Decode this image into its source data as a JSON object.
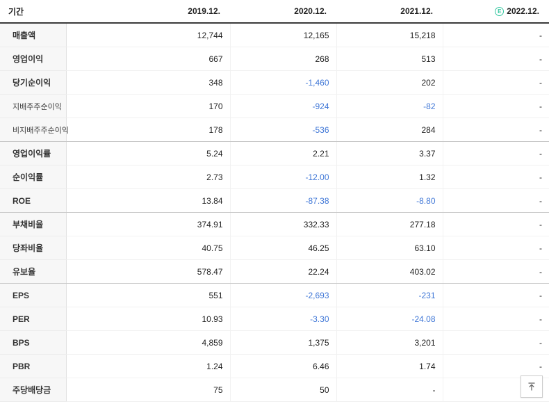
{
  "colors": {
    "negative_value": "#4178d7",
    "estimate_badge": "#35c7a0",
    "header_rule": "#3a3a3a",
    "label_column_bg": "#f7f7f7"
  },
  "table": {
    "period_label": "기간",
    "columns": [
      "2019.12.",
      "2020.12.",
      "2021.12.",
      "2022.12."
    ],
    "estimate_badge": "E",
    "rows": [
      {
        "label": "매출액",
        "sub": false,
        "sep_after": false,
        "values": [
          "12,744",
          "12,165",
          "15,218",
          "-"
        ]
      },
      {
        "label": "영업이익",
        "sub": false,
        "sep_after": false,
        "values": [
          "667",
          "268",
          "513",
          "-"
        ]
      },
      {
        "label": "당기순이익",
        "sub": false,
        "sep_after": false,
        "values": [
          "348",
          "-1,460",
          "202",
          "-"
        ]
      },
      {
        "label": "지배주주순이익",
        "sub": true,
        "sep_after": false,
        "values": [
          "170",
          "-924",
          "-82",
          "-"
        ]
      },
      {
        "label": "비지배주주순이익",
        "sub": true,
        "sep_after": true,
        "values": [
          "178",
          "-536",
          "284",
          "-"
        ]
      },
      {
        "label": "영업이익률",
        "sub": false,
        "sep_after": false,
        "values": [
          "5.24",
          "2.21",
          "3.37",
          "-"
        ]
      },
      {
        "label": "순이익률",
        "sub": false,
        "sep_after": false,
        "values": [
          "2.73",
          "-12.00",
          "1.32",
          "-"
        ]
      },
      {
        "label": "ROE",
        "sub": false,
        "sep_after": true,
        "values": [
          "13.84",
          "-87.38",
          "-8.80",
          "-"
        ]
      },
      {
        "label": "부채비율",
        "sub": false,
        "sep_after": false,
        "values": [
          "374.91",
          "332.33",
          "277.18",
          "-"
        ]
      },
      {
        "label": "당좌비율",
        "sub": false,
        "sep_after": false,
        "values": [
          "40.75",
          "46.25",
          "63.10",
          "-"
        ]
      },
      {
        "label": "유보율",
        "sub": false,
        "sep_after": true,
        "values": [
          "578.47",
          "22.24",
          "403.02",
          "-"
        ]
      },
      {
        "label": "EPS",
        "sub": false,
        "sep_after": false,
        "values": [
          "551",
          "-2,693",
          "-231",
          "-"
        ]
      },
      {
        "label": "PER",
        "sub": false,
        "sep_after": false,
        "values": [
          "10.93",
          "-3.30",
          "-24.08",
          "-"
        ]
      },
      {
        "label": "BPS",
        "sub": false,
        "sep_after": false,
        "values": [
          "4,859",
          "1,375",
          "3,201",
          "-"
        ]
      },
      {
        "label": "PBR",
        "sub": false,
        "sep_after": false,
        "values": [
          "1.24",
          "6.46",
          "1.74",
          "-"
        ]
      },
      {
        "label": "주당배당금",
        "sub": false,
        "sep_after": false,
        "values": [
          "75",
          "50",
          "-",
          "-"
        ]
      }
    ]
  },
  "scroll_top_button": {
    "name": "scroll-to-top"
  }
}
